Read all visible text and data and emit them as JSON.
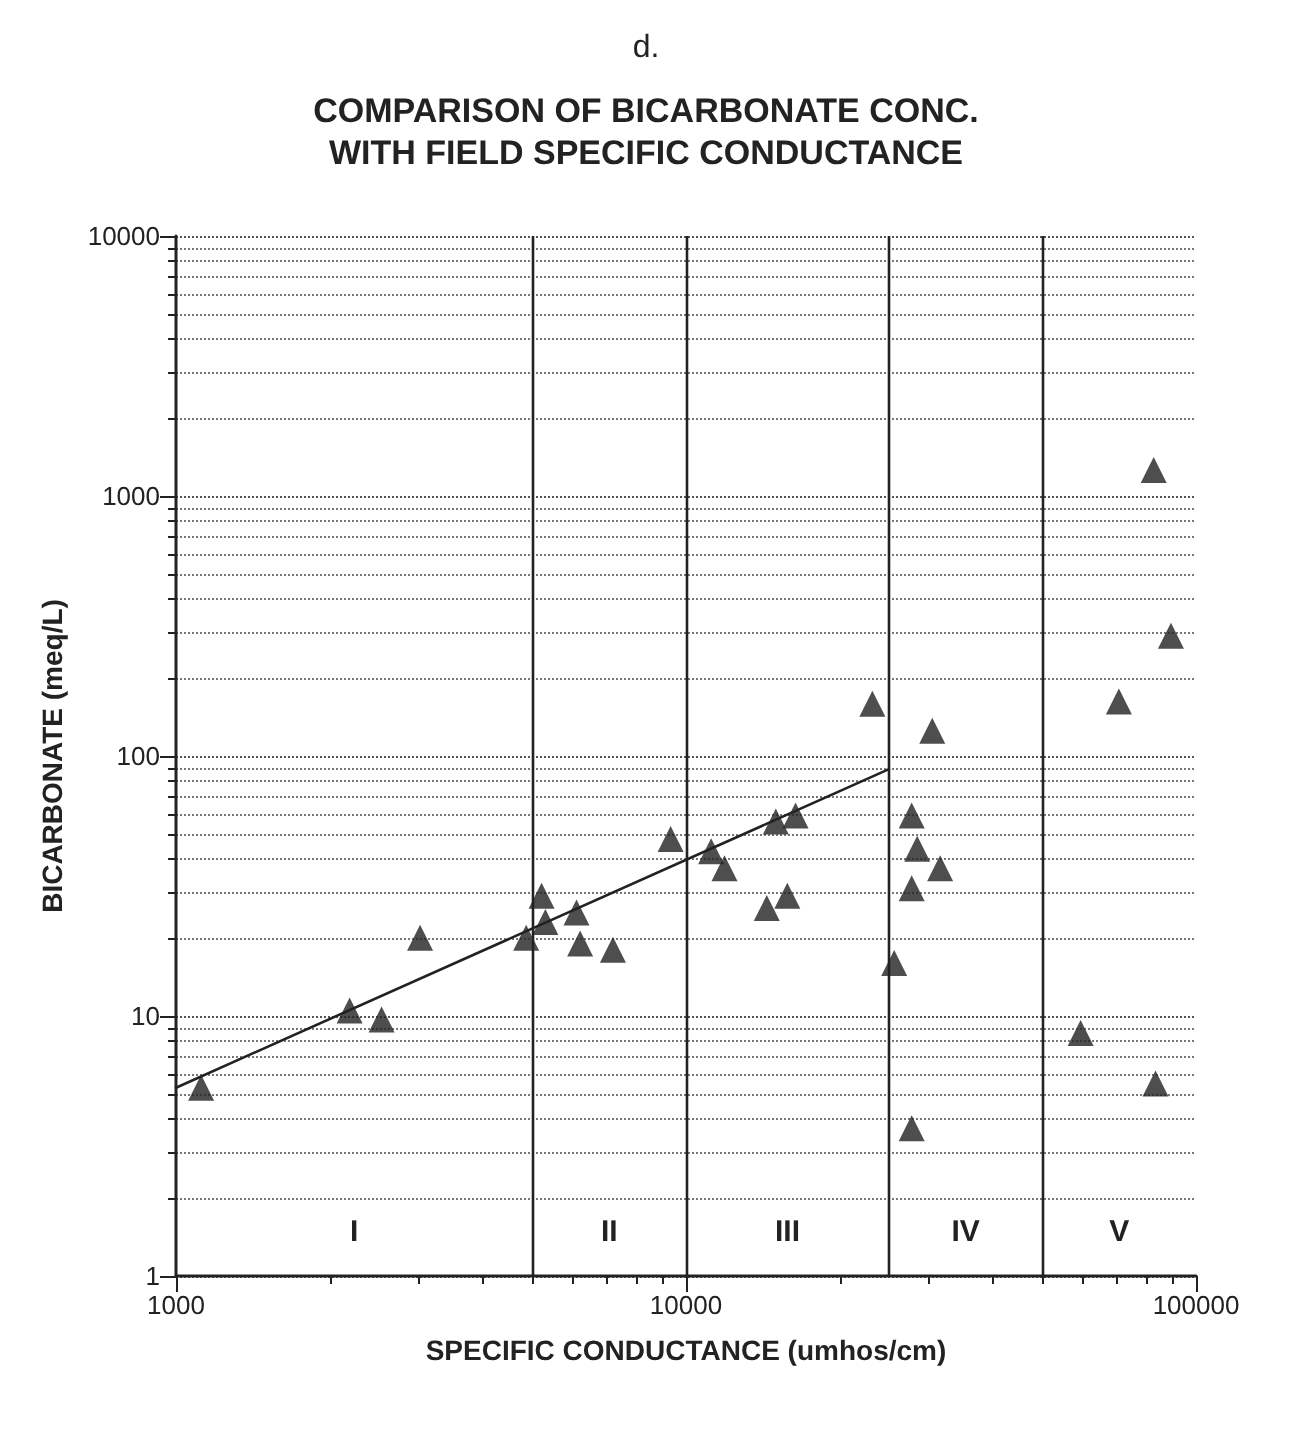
{
  "chart_data": {
    "type": "scatter",
    "title": "COMPARISON OF BICARBONATE CONC.\nWITH FIELD SPECIFIC CONDUCTANCE",
    "xlabel": "SPECIFIC CONDUCTANCE (umhos/cm)",
    "ylabel": "BICARBONATE (meq/L)",
    "annotations": [
      "d.",
      "I",
      "II",
      "III",
      "IV",
      "V"
    ],
    "log": "xy",
    "xlim": [
      1000,
      100000
    ],
    "ylim": [
      1,
      10000
    ],
    "xticks": [
      1000,
      10000,
      100000
    ],
    "yticks": [
      1,
      10,
      100,
      1000,
      10000
    ],
    "grid": "y",
    "marker": "triangle",
    "series": [
      {
        "color": "#222222",
        "x": [
          82600,
          89300,
          70600,
          83300,
          59400,
          30400,
          27700,
          31500,
          28400,
          27700,
          25600,
          27700,
          23200,
          16400,
          15000,
          15800,
          14400,
          11200,
          11900,
          9330,
          7190,
          6100,
          6200,
          5210,
          5300,
          4860,
          3010,
          2530,
          2190,
          1120
        ],
        "values": [
          1260,
          290,
          162,
          5.5,
          8.6,
          125,
          59,
          37,
          44,
          31,
          16,
          3.7,
          159,
          59,
          56,
          29,
          26,
          43,
          37,
          48,
          18,
          25,
          19,
          29,
          23,
          20,
          20,
          9.7,
          10.5,
          5.3
        ]
      },
      {
        "type": "line",
        "color": "#222222",
        "marker": "none",
        "line_style": "solid",
        "x": [
          1000,
          25000
        ],
        "values": [
          5.3,
          89
        ]
      }
    ],
    "ref_lines": [
      {
        "axis": "x",
        "value": 5000
      },
      {
        "axis": "x",
        "value": 10000
      },
      {
        "axis": "x",
        "value": 25000
      },
      {
        "axis": "x",
        "value": 50000
      }
    ]
  }
}
